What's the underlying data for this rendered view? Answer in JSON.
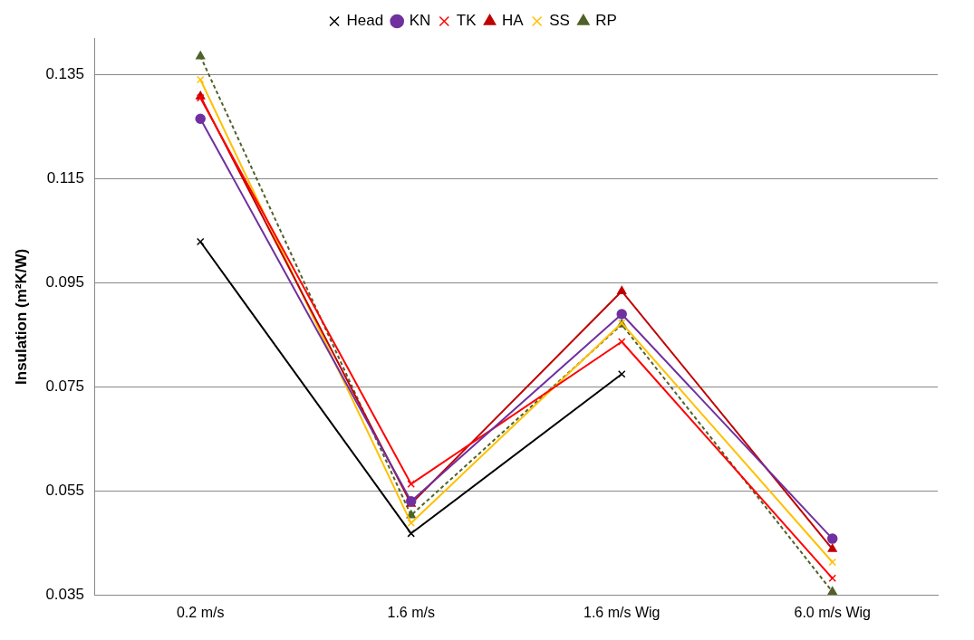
{
  "chart_data": {
    "type": "line",
    "ylabel": "Insulation (m²K/W)",
    "categories": [
      "0.2 m/s",
      "1.6 m/s",
      "1.6 m/s Wig",
      "6.0 m/s Wig"
    ],
    "series": [
      {
        "name": "Head",
        "color": "#000000",
        "marker": "cross",
        "values": [
          0.1029,
          0.0469,
          0.0775,
          null
        ]
      },
      {
        "name": "KN",
        "color": "#7030a0",
        "marker": "circle",
        "values": [
          0.1265,
          0.0531,
          0.089,
          0.0459
        ]
      },
      {
        "name": "TK",
        "color": "#ff0000",
        "marker": "cross",
        "values": [
          0.1305,
          0.0564,
          0.0837,
          0.0383
        ]
      },
      {
        "name": "HA",
        "color": "#c00000",
        "marker": "triangle",
        "values": [
          0.1308,
          0.0526,
          0.0934,
          0.0439
        ]
      },
      {
        "name": "SS",
        "color": "#ffc000",
        "marker": "cross",
        "values": [
          0.134,
          0.0489,
          0.0873,
          0.0414
        ]
      },
      {
        "name": "RP",
        "color": "#4f6228",
        "marker": "triangle",
        "line_style": "dashed",
        "values": [
          0.1385,
          0.0504,
          0.087,
          0.0357
        ]
      }
    ],
    "ylim": [
      0.035,
      0.142
    ],
    "yticks": [
      0.035,
      0.055,
      0.075,
      0.095,
      0.115,
      0.135
    ],
    "grid": "y",
    "legend": "top"
  }
}
